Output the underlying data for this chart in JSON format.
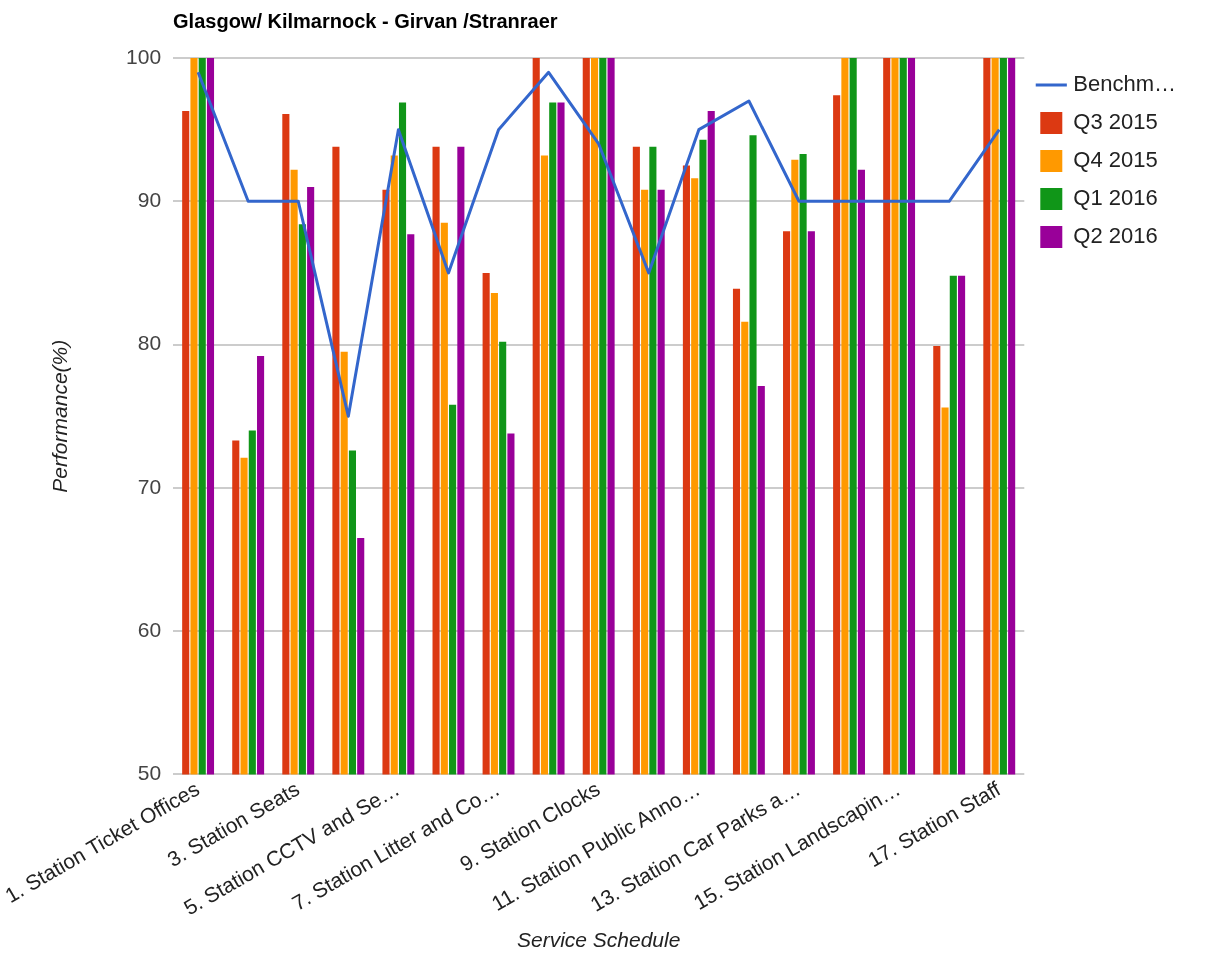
{
  "chart_data": {
    "type": "bar",
    "title": "Glasgow/ Kilmarnock - Girvan /Stranraer",
    "xlabel": "Service Schedule",
    "ylabel": "Performance(%)",
    "categories": [
      "1. Station Ticket Offices",
      null,
      "3. Station Seats",
      null,
      "5. Station CCTV and Se…",
      null,
      "7. Station Litter and Co…",
      null,
      "9. Station Clocks",
      null,
      "11. Station Public Anno…",
      null,
      "13. Station Car Parks a…",
      null,
      "15. Station Landscapin…",
      null,
      "17. Station Staff"
    ],
    "series": [
      {
        "name": "Benchm…",
        "type": "line",
        "color": "#3366cc",
        "values": [
          99,
          90,
          90,
          75,
          95,
          85,
          95,
          99,
          94,
          85,
          95,
          97,
          90,
          90,
          90,
          90,
          95
        ]
      },
      {
        "name": "Q3 2015",
        "color": "#dc3912",
        "values": [
          96.3,
          73.3,
          96.1,
          93.8,
          90.8,
          93.8,
          85,
          100,
          100,
          93.8,
          92.5,
          83.9,
          87.9,
          97.4,
          100,
          79.9,
          100
        ]
      },
      {
        "name": "Q4 2015",
        "color": "#ff9900",
        "values": [
          100,
          72.1,
          92.2,
          79.5,
          93.2,
          88.5,
          83.6,
          93.2,
          100,
          90.8,
          91.6,
          81.6,
          92.9,
          100,
          100,
          75.6,
          100
        ]
      },
      {
        "name": "Q1 2016",
        "color": "#109618",
        "values": [
          100,
          74,
          88.4,
          72.6,
          96.9,
          75.8,
          80.2,
          96.9,
          100,
          93.8,
          94.3,
          94.6,
          93.3,
          100,
          100,
          84.8,
          100
        ]
      },
      {
        "name": "Q2 2016",
        "color": "#990099",
        "values": [
          100,
          79.2,
          91,
          66.5,
          87.7,
          93.8,
          73.8,
          96.9,
          100,
          90.8,
          96.3,
          77.1,
          87.9,
          92.2,
          100,
          84.8,
          100
        ]
      }
    ],
    "ylim": [
      50,
      100
    ],
    "yticks": [
      50,
      60,
      70,
      80,
      90,
      100
    ],
    "grid": "y",
    "legend": "top right",
    "marker": "none",
    "line_style": "solid"
  }
}
